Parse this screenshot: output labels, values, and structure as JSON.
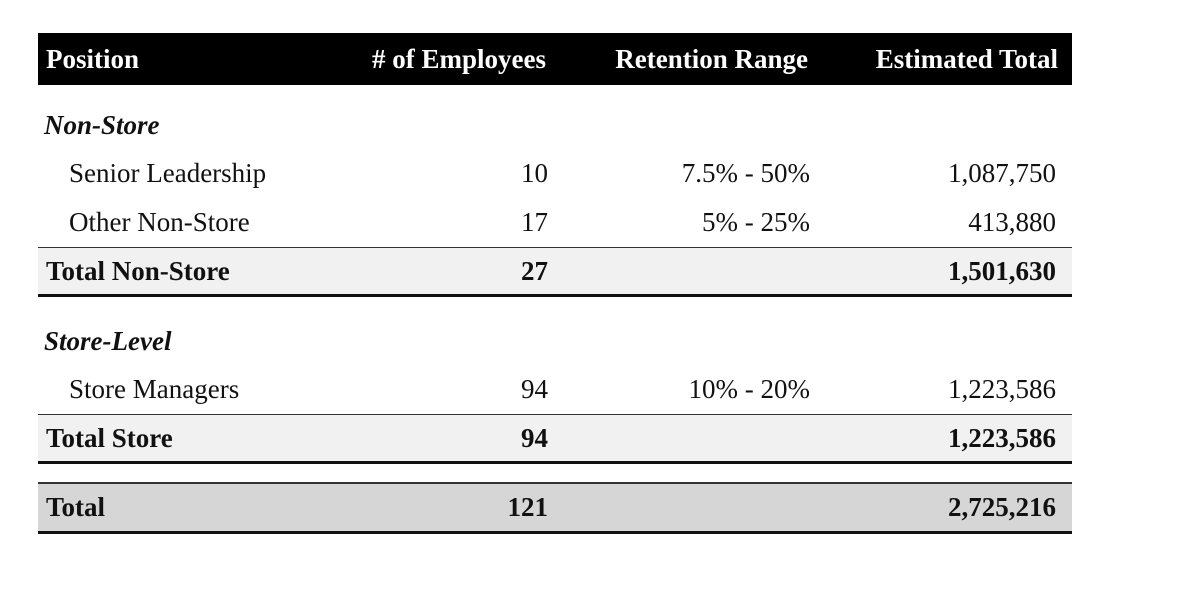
{
  "header": {
    "position": "Position",
    "employees": "# of Employees",
    "retention": "Retention Range",
    "estimated": "Estimated Total"
  },
  "sections": [
    {
      "title": "Non-Store",
      "rows": [
        {
          "position": "Senior Leadership",
          "employees": "10",
          "retention": "7.5% - 50%",
          "estimated": "1,087,750"
        },
        {
          "position": "Other Non-Store",
          "employees": "17",
          "retention": "5% - 25%",
          "estimated": "413,880"
        }
      ],
      "total": {
        "label": "Total Non-Store",
        "employees": "27",
        "estimated": "1,501,630"
      }
    },
    {
      "title": "Store-Level",
      "rows": [
        {
          "position": "Store Managers",
          "employees": "94",
          "retention": "10% - 20%",
          "estimated": "1,223,586"
        }
      ],
      "total": {
        "label": "Total Store",
        "employees": "94",
        "estimated": "1,223,586"
      }
    }
  ],
  "grand_total": {
    "label": "Total",
    "employees": "121",
    "estimated": "2,725,216"
  }
}
